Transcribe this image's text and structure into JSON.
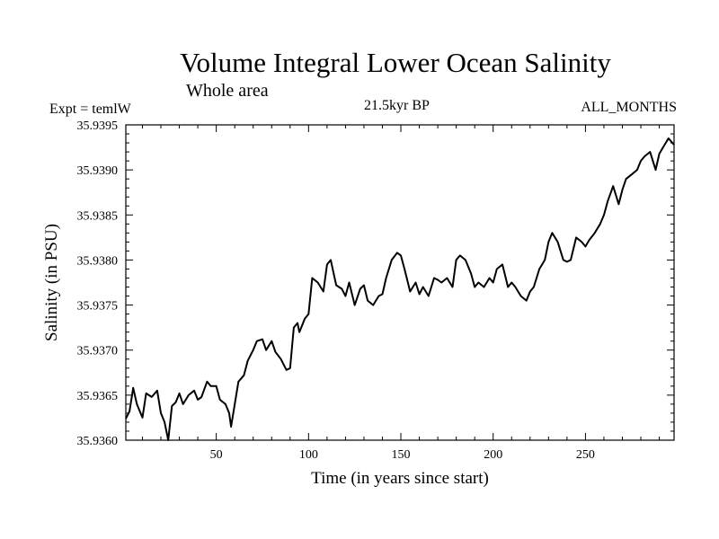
{
  "header": {
    "title": "Volume Integral Lower Ocean Salinity",
    "subtitle": "Whole area",
    "expt": "Expt = temlW",
    "period": "21.5kyr BP",
    "months": "ALL_MONTHS"
  },
  "chart_data": {
    "type": "line",
    "title": "Volume Integral Lower Ocean Salinity",
    "subtitle": "Whole area",
    "xlabel": "Time (in years since start)",
    "ylabel": "Salinity (in PSU)",
    "xlim": [
      1,
      298
    ],
    "ylim": [
      35.936,
      35.9395
    ],
    "xticks": [
      50,
      100,
      150,
      200,
      250
    ],
    "xtick_labels": [
      "50",
      "100",
      "150",
      "200",
      "250"
    ],
    "yticks": [
      35.936,
      35.9365,
      35.937,
      35.9375,
      35.938,
      35.9385,
      35.939,
      35.9395
    ],
    "ytick_labels": [
      "35.9360",
      "35.9365",
      "35.9370",
      "35.9375",
      "35.9380",
      "35.9385",
      "35.9390",
      "35.9395"
    ],
    "grid": false,
    "series": [
      {
        "name": "Salinity",
        "x": [
          1,
          3,
          5,
          7,
          10,
          12,
          15,
          18,
          20,
          22,
          24,
          26,
          28,
          30,
          32,
          35,
          38,
          40,
          42,
          45,
          47,
          50,
          52,
          55,
          57,
          58,
          60,
          62,
          65,
          67,
          70,
          72,
          75,
          77,
          80,
          82,
          85,
          88,
          90,
          92,
          94,
          95,
          98,
          100,
          102,
          105,
          108,
          110,
          112,
          115,
          118,
          120,
          122,
          125,
          128,
          130,
          132,
          135,
          138,
          140,
          142,
          145,
          148,
          150,
          152,
          155,
          158,
          160,
          162,
          165,
          168,
          170,
          172,
          175,
          178,
          180,
          182,
          185,
          188,
          190,
          192,
          195,
          198,
          200,
          202,
          205,
          208,
          210,
          212,
          215,
          218,
          220,
          222,
          225,
          228,
          230,
          232,
          235,
          238,
          240,
          242,
          245,
          248,
          250,
          252,
          255,
          258,
          260,
          262,
          265,
          268,
          270,
          272,
          275,
          278,
          280,
          282,
          285,
          288,
          290,
          292,
          295,
          298
        ],
        "values": [
          35.93624,
          35.93632,
          35.93658,
          35.9364,
          35.93625,
          35.93652,
          35.93648,
          35.93655,
          35.9363,
          35.9362,
          35.936,
          35.93638,
          35.93642,
          35.93652,
          35.9364,
          35.9365,
          35.93655,
          35.93645,
          35.93648,
          35.93665,
          35.9366,
          35.9366,
          35.93645,
          35.9364,
          35.9363,
          35.93615,
          35.9364,
          35.93665,
          35.93672,
          35.93688,
          35.937,
          35.9371,
          35.93712,
          35.937,
          35.9371,
          35.93698,
          35.9369,
          35.93678,
          35.9368,
          35.93725,
          35.9373,
          35.9372,
          35.93735,
          35.9374,
          35.9378,
          35.93775,
          35.93765,
          35.93795,
          35.938,
          35.93772,
          35.93768,
          35.9376,
          35.93775,
          35.9375,
          35.93768,
          35.93772,
          35.93755,
          35.9375,
          35.9376,
          35.93762,
          35.9378,
          35.938,
          35.93808,
          35.93805,
          35.9379,
          35.93765,
          35.93775,
          35.93762,
          35.9377,
          35.9376,
          35.9378,
          35.93778,
          35.93775,
          35.9378,
          35.9377,
          35.938,
          35.93805,
          35.938,
          35.93785,
          35.9377,
          35.93775,
          35.9377,
          35.9378,
          35.93775,
          35.9379,
          35.93795,
          35.9377,
          35.93775,
          35.9377,
          35.9376,
          35.93755,
          35.93765,
          35.9377,
          35.9379,
          35.938,
          35.9382,
          35.9383,
          35.9382,
          35.938,
          35.93798,
          35.938,
          35.93825,
          35.9382,
          35.93815,
          35.93822,
          35.9383,
          35.9384,
          35.9385,
          35.93865,
          35.93882,
          35.93862,
          35.93878,
          35.9389,
          35.93895,
          35.939,
          35.9391,
          35.93915,
          35.9392,
          35.939,
          35.93918,
          35.93925,
          35.93935,
          35.93928
        ]
      }
    ]
  }
}
